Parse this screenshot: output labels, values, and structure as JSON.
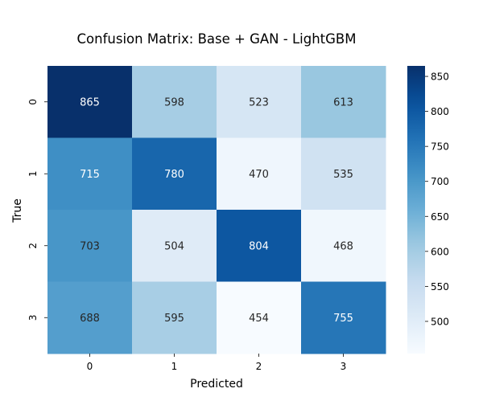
{
  "chart_data": {
    "type": "heatmap",
    "title": "Confusion Matrix: Base + GAN - LightGBM",
    "xlabel": "Predicted",
    "ylabel": "True",
    "x_categories": [
      "0",
      "1",
      "2",
      "3"
    ],
    "y_categories": [
      "0",
      "1",
      "2",
      "3"
    ],
    "values": [
      [
        865,
        598,
        523,
        613
      ],
      [
        715,
        780,
        470,
        535
      ],
      [
        703,
        504,
        804,
        468
      ],
      [
        688,
        595,
        454,
        755
      ]
    ],
    "colorbar": {
      "min": 454,
      "max": 865,
      "ticks": [
        500,
        550,
        600,
        650,
        700,
        750,
        800,
        850
      ],
      "colormap": "Blues"
    },
    "annotation_colors": {
      "dark": "#262626",
      "light": "#ffffff"
    },
    "grid": false
  }
}
